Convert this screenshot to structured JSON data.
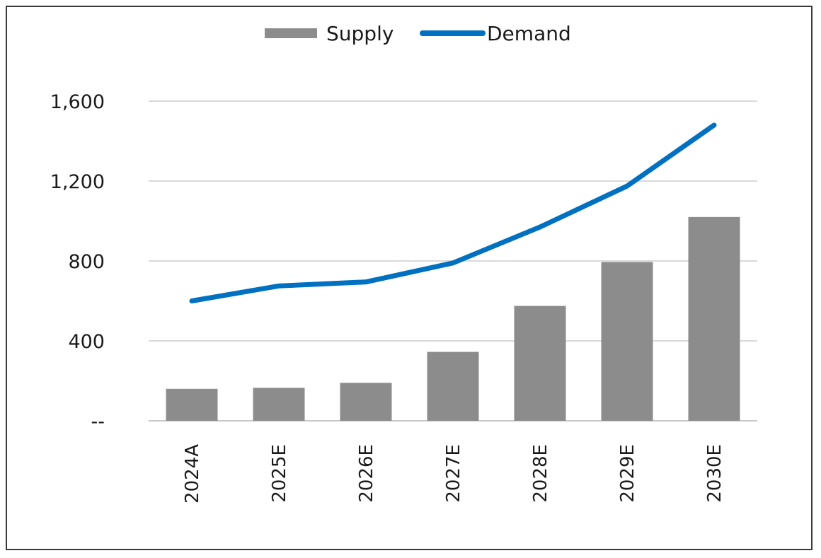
{
  "chart_data": {
    "type": "bar",
    "categories": [
      "2024A",
      "2025E",
      "2026E",
      "2027E",
      "2028E",
      "2029E",
      "2030E"
    ],
    "series": [
      {
        "name": "Supply",
        "type": "bar",
        "color": "#8c8c8c",
        "values": [
          160,
          165,
          190,
          345,
          575,
          795,
          1020
        ]
      },
      {
        "name": "Demand",
        "type": "line",
        "color": "#0070c0",
        "values": [
          600,
          675,
          695,
          790,
          970,
          1175,
          1480
        ]
      }
    ],
    "y_ticks": [
      "--",
      "400",
      "800",
      "1,200",
      "1,600"
    ],
    "y_tick_values": [
      0,
      400,
      800,
      1200,
      1600
    ],
    "ylim": [
      0,
      1600
    ],
    "grid": true,
    "legend_position": "top-center",
    "title": "",
    "xlabel": "",
    "ylabel": ""
  }
}
